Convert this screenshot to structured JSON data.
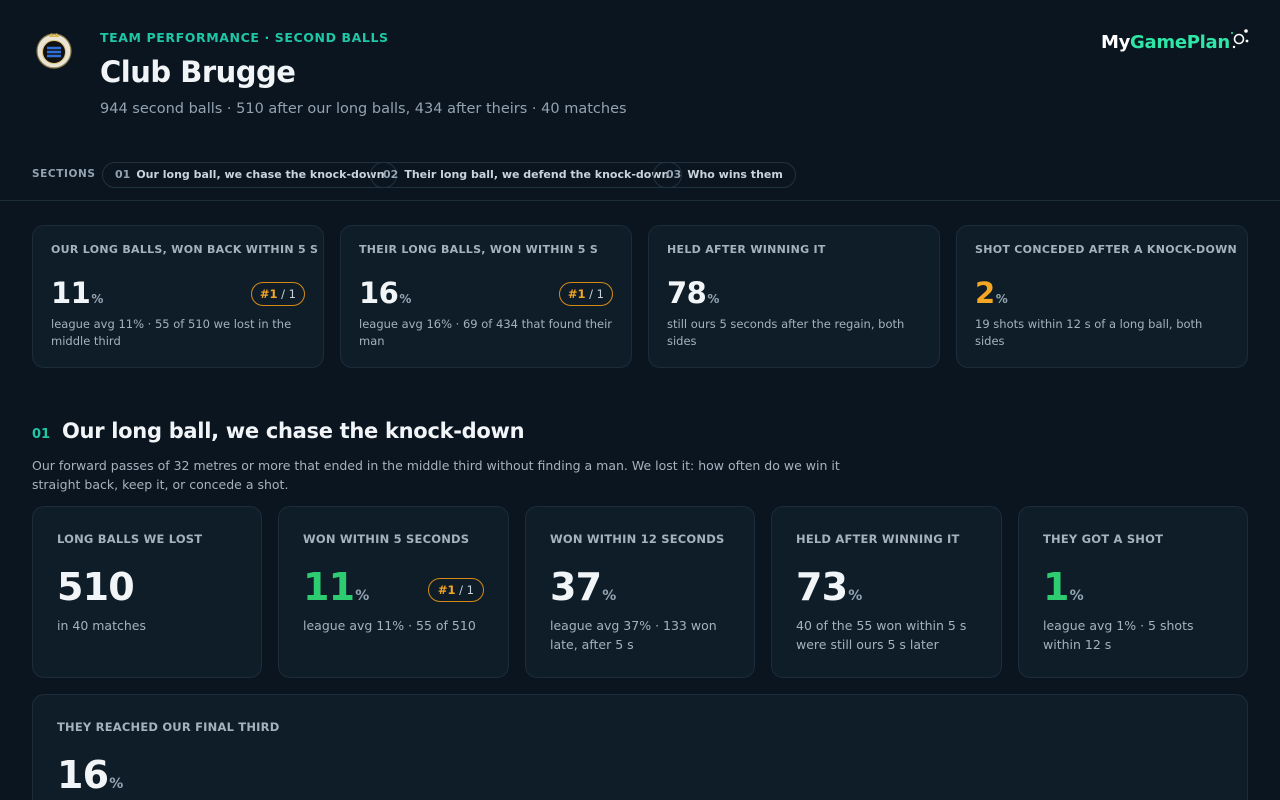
{
  "header": {
    "eyebrow": "TEAM PERFORMANCE · SECOND BALLS",
    "title": "Club Brugge",
    "subtitle": "944 second balls · 510 after our long balls, 434 after theirs · 40 matches",
    "brand_my": "My",
    "brand_gp": "GamePlan",
    "crest_icon": "club-brugge-crest-icon"
  },
  "sections": {
    "label": "SECTIONS",
    "items": [
      {
        "num": "01",
        "label": "Our long ball, we chase the knock-down"
      },
      {
        "num": "02",
        "label": "Their long ball, we defend the knock-down"
      },
      {
        "num": "03",
        "label": "Who wins them"
      }
    ]
  },
  "kpis": [
    {
      "label": "OUR LONG BALLS, WON BACK WITHIN 5 S",
      "value": "11",
      "unit": "%",
      "rank": "#1",
      "rank_of": "/ 1",
      "note": "league avg 11% · 55 of 510 we lost in the middle third"
    },
    {
      "label": "THEIR LONG BALLS, WON WITHIN 5 S",
      "value": "16",
      "unit": "%",
      "rank": "#1",
      "rank_of": "/ 1",
      "note": "league avg 16% · 69 of 434 that found their man"
    },
    {
      "label": "HELD AFTER WINNING IT",
      "value": "78",
      "unit": "%",
      "note": "still ours 5 seconds after the regain, both sides"
    },
    {
      "label": "SHOT CONCEDED AFTER A KNOCK-DOWN",
      "value": "2",
      "unit": "%",
      "note": "19 shots within 12 s of a long ball, both sides"
    }
  ],
  "section1": {
    "num": "01",
    "title": "Our long ball, we chase the knock-down",
    "desc": "Our forward passes of 32 metres or more that ended in the middle third without finding a man. We lost it: how often do we win it straight back, keep it, or concede a shot.",
    "stats": [
      {
        "label": "LONG BALLS WE LOST",
        "value": "510",
        "unit": "",
        "note": "in 40 matches"
      },
      {
        "label": "WON WITHIN 5 SECONDS",
        "value": "11",
        "unit": "%",
        "rank": "#1",
        "rank_of": "/ 1",
        "note": "league avg 11% · 55 of 510"
      },
      {
        "label": "WON WITHIN 12 SECONDS",
        "value": "37",
        "unit": "%",
        "note": "league avg 37% · 133 won late, after 5 s"
      },
      {
        "label": "HELD AFTER WINNING IT",
        "value": "73",
        "unit": "%",
        "note": "40 of the 55 won within 5 s were still ours 5 s later"
      },
      {
        "label": "THEY GOT A SHOT",
        "value": "1",
        "unit": "%",
        "note": "league avg 1% · 5 shots within 12 s"
      }
    ],
    "final_third": {
      "label": "THEY REACHED OUR FINAL THIRD",
      "value": "16",
      "unit": "%"
    }
  },
  "colors": {
    "background": "#0a1520",
    "accent_teal": "#1fc7a6",
    "brand_green": "#2ee6a6",
    "good_green": "#2ecc71",
    "rank_orange": "#f5a623"
  }
}
